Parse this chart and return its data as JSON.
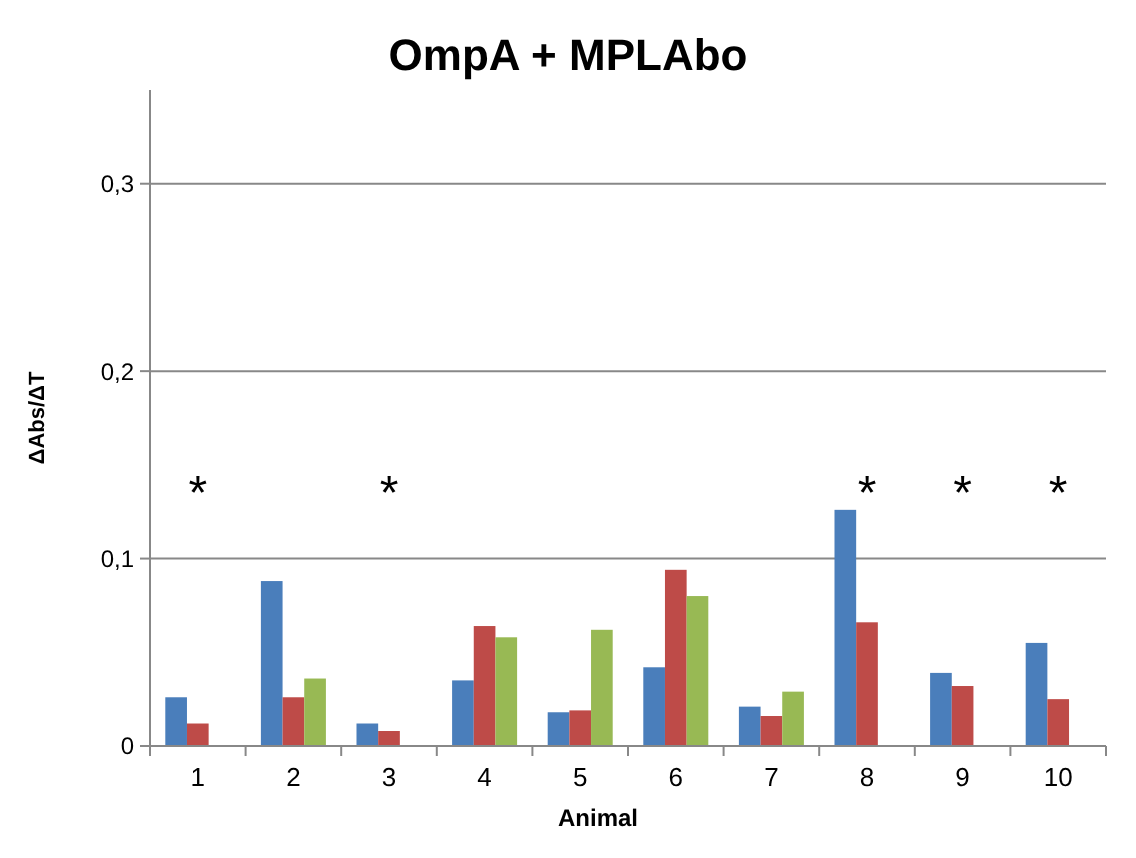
{
  "chart_data": {
    "type": "bar",
    "title": "OmpA + MPLAbo",
    "xlabel": "Animal",
    "ylabel": "ΔAbs/ΔT",
    "categories": [
      "1",
      "2",
      "3",
      "4",
      "5",
      "6",
      "7",
      "8",
      "9",
      "10"
    ],
    "series": [
      {
        "color": "#4a7ebb",
        "values": [
          0.026,
          0.088,
          0.012,
          0.035,
          0.018,
          0.042,
          0.021,
          0.126,
          0.039,
          0.055
        ]
      },
      {
        "color": "#be4b48",
        "values": [
          0.012,
          0.026,
          0.008,
          0.064,
          0.019,
          0.094,
          0.016,
          0.066,
          0.032,
          0.025
        ]
      },
      {
        "color": "#98b954",
        "values": [
          null,
          0.036,
          null,
          0.058,
          0.062,
          0.08,
          0.029,
          null,
          null,
          null
        ]
      }
    ],
    "ylim": [
      0,
      0.35
    ],
    "yticks": [
      {
        "value": 0,
        "label": "0"
      },
      {
        "value": 0.1,
        "label": "0,1"
      },
      {
        "value": 0.2,
        "label": "0,2"
      },
      {
        "value": 0.3,
        "label": "0,3"
      }
    ],
    "grid": "y",
    "annotations": [
      "*",
      "*",
      "*",
      "*",
      "*"
    ]
  }
}
